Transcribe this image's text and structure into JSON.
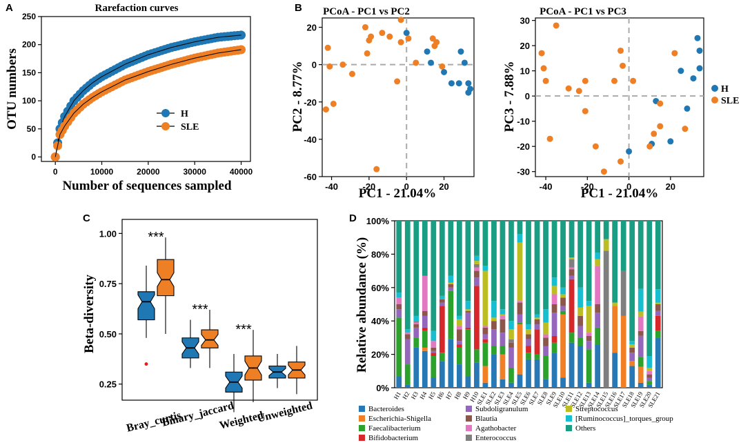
{
  "figure": {
    "colors": {
      "H": "#1f77b4",
      "SLE": "#ef7f24",
      "grid": "#aaaaaa"
    }
  },
  "chart_data": [
    {
      "panel": "A",
      "type": "line",
      "title": "Rarefaction curves",
      "xlabel": "Number of sequences sampled",
      "ylabel": "OTU numbers",
      "xlim": [
        -3000,
        42000
      ],
      "ylim": [
        -8,
        250
      ],
      "xticks": [
        0,
        10000,
        20000,
        30000,
        40000
      ],
      "yticks": [
        0,
        50,
        100,
        150,
        200,
        250
      ],
      "legend": {
        "position": "center-right",
        "entries": [
          "H",
          "SLE"
        ]
      },
      "series": [
        {
          "name": "H",
          "x": [
            0,
            1000,
            2000,
            4000,
            6000,
            8000,
            10000,
            15000,
            20000,
            25000,
            30000,
            35000,
            40000
          ],
          "y": [
            0,
            50,
            72,
            100,
            118,
            132,
            143,
            165,
            182,
            195,
            205,
            213,
            217
          ]
        },
        {
          "name": "SLE",
          "x": [
            0,
            1000,
            2000,
            4000,
            6000,
            8000,
            10000,
            15000,
            20000,
            25000,
            30000,
            35000,
            40000
          ],
          "y": [
            0,
            40,
            55,
            78,
            94,
            106,
            116,
            137,
            152,
            165,
            176,
            185,
            191
          ]
        }
      ]
    },
    {
      "panel": "B",
      "type": "scatter",
      "title": "PCoA - PC1 vs PC2",
      "xlabel": "PC1 - 21.04%",
      "ylabel": "PC2 - 8.77%",
      "xlim": [
        -45,
        36
      ],
      "ylim": [
        -60,
        25
      ],
      "xticks": [
        -40,
        -20,
        0,
        20
      ],
      "yticks": [
        -60,
        -40,
        -20,
        0,
        20
      ],
      "series": [
        {
          "name": "H",
          "points": [
            [
              0,
              17
            ],
            [
              11,
              7
            ],
            [
              13,
              1
            ],
            [
              20,
              -4
            ],
            [
              24,
              -10
            ],
            [
              28,
              -10
            ],
            [
              29,
              7
            ],
            [
              31,
              1
            ],
            [
              33,
              -10
            ],
            [
              34,
              -13
            ],
            [
              33,
              -15
            ]
          ]
        },
        {
          "name": "SLE",
          "points": [
            [
              -42,
              9
            ],
            [
              -43,
              -24
            ],
            [
              -39,
              -21
            ],
            [
              -41,
              -1
            ],
            [
              -34,
              0
            ],
            [
              -29,
              -5
            ],
            [
              -22,
              20
            ],
            [
              -19,
              15
            ],
            [
              -20,
              13
            ],
            [
              -21,
              6
            ],
            [
              -13,
              17
            ],
            [
              -9,
              15
            ],
            [
              -3,
              24
            ],
            [
              -3,
              12
            ],
            [
              -5,
              -9
            ],
            [
              1,
              14
            ],
            [
              5,
              1
            ],
            [
              14,
              14
            ],
            [
              16,
              12
            ],
            [
              15,
              10
            ],
            [
              19,
              -1
            ],
            [
              -16,
              -56
            ]
          ]
        }
      ]
    },
    {
      "panel": "B",
      "type": "scatter",
      "title": "PCoA - PC1 vs PC3",
      "xlabel": "PC1 - 21.04%",
      "ylabel": "PC3 - 7.88%",
      "xlim": [
        -45,
        36
      ],
      "ylim": [
        -32,
        31
      ],
      "xticks": [
        -40,
        -20,
        0,
        20
      ],
      "yticks": [
        -30,
        -20,
        -10,
        0,
        10,
        20,
        30
      ],
      "legend": {
        "position": "right",
        "entries": [
          "H",
          "SLE"
        ]
      },
      "series": [
        {
          "name": "H",
          "points": [
            [
              33,
              23
            ],
            [
              34,
              18
            ],
            [
              34,
              11
            ],
            [
              31,
              7
            ],
            [
              25,
              10
            ],
            [
              28,
              -5
            ],
            [
              13,
              -2
            ],
            [
              20,
              -18
            ],
            [
              11,
              -19
            ],
            [
              0,
              -22
            ]
          ]
        },
        {
          "name": "SLE",
          "points": [
            [
              -42,
              17
            ],
            [
              -41,
              11
            ],
            [
              -40,
              6
            ],
            [
              -35,
              28
            ],
            [
              -38,
              -17
            ],
            [
              -29,
              3
            ],
            [
              -24,
              2
            ],
            [
              -21,
              6
            ],
            [
              -21,
              -6
            ],
            [
              -16,
              -20
            ],
            [
              -12,
              -30
            ],
            [
              -7,
              6
            ],
            [
              -4,
              18
            ],
            [
              -3,
              12
            ],
            [
              2,
              6
            ],
            [
              -4,
              -26
            ],
            [
              15,
              -3
            ],
            [
              15,
              -12
            ],
            [
              12,
              -15
            ],
            [
              10,
              -20
            ],
            [
              22,
              17
            ],
            [
              27,
              -13
            ]
          ]
        }
      ]
    },
    {
      "panel": "C",
      "type": "box",
      "ylabel": "Beta-diversity",
      "ylim": [
        0.17,
        1.07
      ],
      "yticks": [
        "0.25",
        "0.50",
        "0.75",
        "1.00"
      ],
      "categories": [
        "Bray_curtis",
        "Binary_jaccard",
        "Weighted",
        "Unweighted"
      ],
      "significance": [
        "***",
        "***",
        "***",
        ""
      ],
      "boxes": [
        {
          "group": "Bray_curtis",
          "series": "H",
          "whisker_low": 0.48,
          "q1": 0.57,
          "median": 0.66,
          "q3": 0.71,
          "whisker_high": 0.84,
          "outliers": [
            0.35
          ]
        },
        {
          "group": "Bray_curtis",
          "series": "SLE",
          "whisker_low": 0.5,
          "q1": 0.69,
          "median": 0.77,
          "q3": 0.87,
          "whisker_high": 0.98,
          "outliers": []
        },
        {
          "group": "Binary_jaccard",
          "series": "H",
          "whisker_low": 0.33,
          "q1": 0.38,
          "median": 0.43,
          "q3": 0.48,
          "whisker_high": 0.57,
          "outliers": []
        },
        {
          "group": "Binary_jaccard",
          "series": "SLE",
          "whisker_low": 0.33,
          "q1": 0.43,
          "median": 0.47,
          "q3": 0.52,
          "whisker_high": 0.62,
          "outliers": []
        },
        {
          "group": "Weighted",
          "series": "H",
          "whisker_low": 0.11,
          "q1": 0.21,
          "median": 0.26,
          "q3": 0.31,
          "whisker_high": 0.4,
          "outliers": []
        },
        {
          "group": "Weighted",
          "series": "SLE",
          "whisker_low": 0.16,
          "q1": 0.27,
          "median": 0.33,
          "q3": 0.39,
          "whisker_high": 0.52,
          "outliers": []
        },
        {
          "group": "Unweighted",
          "series": "H",
          "whisker_low": 0.23,
          "q1": 0.28,
          "median": 0.31,
          "q3": 0.34,
          "whisker_high": 0.4,
          "outliers": []
        },
        {
          "group": "Unweighted",
          "series": "SLE",
          "whisker_low": 0.2,
          "q1": 0.28,
          "median": 0.32,
          "q3": 0.36,
          "whisker_high": 0.44,
          "outliers": []
        }
      ]
    },
    {
      "panel": "D",
      "type": "stacked-bar",
      "ylabel": "Relative abundance (%)",
      "ylim": [
        0,
        100
      ],
      "yticks": [
        "0%",
        "20%",
        "40%",
        "60%",
        "80%",
        "100%"
      ],
      "categories": [
        "H1",
        "H2",
        "H3",
        "H4",
        "H5",
        "H6",
        "H7",
        "H8",
        "H9",
        "H10",
        "SLE1",
        "SLE2",
        "SLE3",
        "SLE4",
        "SLE5",
        "SLE6",
        "SLE7",
        "SLE8",
        "SLE9",
        "SLE10",
        "SLE11",
        "SLE12",
        "SLE13",
        "SLE14",
        "SLE15",
        "SLE16",
        "SLE17",
        "SLE18",
        "SLE19",
        "SLE20",
        "SLE21"
      ],
      "series": [
        {
          "name": "Bacteroides",
          "color": "#2778b5",
          "values": [
            7,
            2,
            24,
            22,
            6,
            16,
            29,
            14,
            7,
            15,
            3,
            20,
            5,
            3,
            8,
            17,
            17,
            5,
            21,
            6,
            27,
            25,
            3,
            26,
            0,
            21,
            0,
            13,
            3,
            2,
            30
          ]
        },
        {
          "name": "Escherichia-Shigella",
          "color": "#f07f26",
          "values": [
            0,
            0,
            0,
            2,
            0,
            0,
            0,
            0,
            0,
            0,
            10,
            0,
            15,
            0,
            30,
            0,
            0,
            0,
            0,
            38,
            0,
            0,
            0,
            0,
            0,
            28,
            43,
            3,
            10,
            0,
            0
          ]
        },
        {
          "name": "Faecalibacterium",
          "color": "#2ca12c",
          "values": [
            35,
            12,
            6,
            10,
            13,
            5,
            29,
            10,
            28,
            8,
            14,
            5,
            5,
            9,
            1,
            4,
            3,
            14,
            6,
            2,
            6,
            5,
            20,
            10,
            0,
            0,
            0,
            0,
            6,
            2,
            4
          ]
        },
        {
          "name": "Bifidobacterium",
          "color": "#d6272a",
          "values": [
            0,
            0,
            0,
            2,
            2,
            28,
            0,
            2,
            1,
            38,
            2,
            0,
            0,
            0,
            0,
            4,
            15,
            0,
            4,
            0,
            32,
            0,
            0,
            0,
            0,
            0,
            0,
            0,
            0,
            0,
            9
          ]
        },
        {
          "name": "Subdoligranulum",
          "color": "#9467bd",
          "values": [
            5,
            15,
            6,
            7,
            1,
            2,
            2,
            2,
            9,
            5,
            3,
            10,
            8,
            12,
            5,
            4,
            3,
            6,
            14,
            3,
            2,
            7,
            5,
            9,
            0,
            0,
            0,
            5,
            13,
            2,
            3
          ]
        },
        {
          "name": "Blautia",
          "color": "#8c564b",
          "values": [
            3,
            3,
            2,
            3,
            2,
            2,
            2,
            7,
            1,
            4,
            4,
            5,
            8,
            3,
            7,
            3,
            3,
            5,
            5,
            5,
            4,
            6,
            3,
            5,
            0,
            0,
            0,
            3,
            3,
            2,
            4
          ]
        },
        {
          "name": "Agathobacter",
          "color": "#e377c2",
          "values": [
            4,
            1,
            1,
            21,
            4,
            0,
            0,
            2,
            0,
            2,
            1,
            0,
            2,
            0,
            1,
            0,
            0,
            2,
            6,
            0,
            1,
            0,
            2,
            23,
            0,
            0,
            0,
            0,
            9,
            2,
            0
          ]
        },
        {
          "name": "Enterococcus",
          "color": "#7f7f7f",
          "values": [
            0,
            0,
            1,
            0,
            0,
            0,
            0,
            0,
            0,
            2,
            0,
            0,
            0,
            2,
            0,
            0,
            0,
            0,
            0,
            0,
            5,
            0,
            0,
            0,
            82,
            0,
            27,
            0,
            0,
            0,
            0
          ]
        },
        {
          "name": "Streptococcus",
          "color": "#bcbd22",
          "values": [
            0,
            0,
            0,
            0,
            0,
            0,
            1,
            4,
            1,
            2,
            33,
            2,
            1,
            6,
            35,
            3,
            1,
            7,
            5,
            2,
            1,
            5,
            16,
            4,
            7,
            2,
            0,
            2,
            3,
            2,
            1
          ]
        },
        {
          "name": "[Ruminococcus]_torques_group",
          "color": "#17becf",
          "values": [
            3,
            2,
            3,
            0,
            6,
            2,
            4,
            2,
            5,
            3,
            3,
            10,
            3,
            5,
            5,
            3,
            2,
            8,
            5,
            4,
            0,
            12,
            3,
            4,
            0,
            0,
            0,
            2,
            14,
            7,
            8
          ]
        },
        {
          "name": "Others",
          "color": "#1a9e83",
          "values": [
            43,
            65,
            57,
            33,
            66,
            45,
            33,
            57,
            48,
            21,
            27,
            48,
            53,
            60,
            8,
            62,
            56,
            53,
            34,
            40,
            22,
            40,
            48,
            19,
            11,
            49,
            30,
            72,
            42,
            81,
            41
          ]
        }
      ]
    }
  ]
}
